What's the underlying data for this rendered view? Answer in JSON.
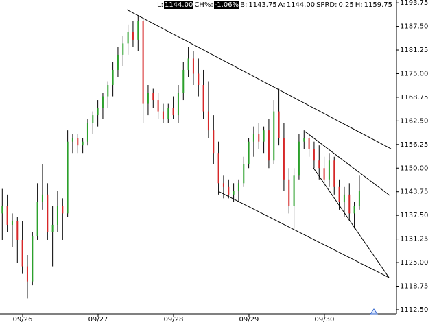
{
  "chart_data": {
    "type": "ohlc",
    "quote": [
      {
        "label": "L:",
        "value": "1144.00",
        "highlight": true
      },
      {
        "label": "CH%:",
        "value": "-1.06%",
        "highlight": true
      },
      {
        "label": "B:",
        "value": "1143.75",
        "highlight": false
      },
      {
        "label": "A:",
        "value": "1144.00",
        "highlight": false
      },
      {
        "label": "SPRD:",
        "value": "0.25",
        "highlight": false
      },
      {
        "label": "H:",
        "value": "1159.75",
        "highlight": false
      }
    ],
    "x": [
      -0.27,
      -0.2033,
      -0.1367,
      -0.07,
      -0.0033,
      0.0633,
      0.13,
      0.1967,
      0.2633,
      0.33,
      0.3967,
      0.4633,
      0.53,
      0.5967,
      0.6633,
      0.73,
      0.7967,
      0.8633,
      0.93,
      0.9967,
      1.0633,
      1.13,
      1.1967,
      1.2633,
      1.33,
      1.3967,
      1.4633,
      1.53,
      1.5967,
      1.6633,
      1.73,
      1.7967,
      1.8633,
      1.93,
      1.9967,
      2.0633,
      2.13,
      2.1967,
      2.2633,
      2.33,
      2.3967,
      2.4633,
      2.53,
      2.5967,
      2.6633,
      2.73,
      2.7967,
      2.8633,
      2.93,
      2.9967,
      3.0633,
      3.13,
      3.1967,
      3.2633,
      3.33,
      3.3967,
      3.4633,
      3.53,
      3.5967,
      3.6633,
      3.73,
      3.7967,
      3.8633,
      3.93,
      3.9967,
      4.0633,
      4.13,
      4.1967,
      4.2633,
      4.33,
      4.3967,
      4.4633
    ],
    "open": [
      1138,
      1140,
      1135,
      1136,
      1131,
      1124,
      1120,
      1132,
      1141,
      1143,
      1133,
      1135,
      1140,
      1138,
      1157,
      1158,
      1156,
      1157,
      1162,
      1164,
      1166,
      1169,
      1172,
      1176,
      1180,
      1183,
      1186,
      1184,
      1189,
      1167,
      1170,
      1168,
      1165,
      1163,
      1166,
      1164,
      1170,
      1176,
      1179,
      1175,
      1172,
      1165,
      1160,
      1154,
      1146,
      1145,
      1143,
      1144,
      1146,
      1151,
      1157,
      1159,
      1157,
      1160,
      1152,
      1165,
      1158,
      1147,
      1140,
      1148,
      1157,
      1158,
      1155,
      1152,
      1150,
      1147,
      1152,
      1145,
      1141,
      1143,
      1138,
      1140
    ],
    "high": [
      1144.5,
      1143,
      1138,
      1137,
      1136,
      1127,
      1133,
      1146,
      1151,
      1146,
      1140,
      1144,
      1142,
      1160,
      1159,
      1159,
      1158,
      1163,
      1165,
      1168,
      1170,
      1173,
      1178,
      1182,
      1185,
      1188,
      1189,
      1190.5,
      1189.5,
      1172,
      1171,
      1170,
      1167,
      1167,
      1169,
      1172,
      1178,
      1182,
      1181,
      1179,
      1176,
      1173,
      1164,
      1157,
      1148,
      1147,
      1146,
      1147,
      1153,
      1158,
      1161,
      1162,
      1161,
      1163,
      1168,
      1171,
      1162,
      1150,
      1150,
      1159,
      1160,
      1159,
      1157,
      1156,
      1153,
      1154,
      1153,
      1147,
      1145,
      1146,
      1141,
      1148
    ],
    "low": [
      1131,
      1133,
      1129,
      1125,
      1122,
      1115.5,
      1119,
      1131,
      1139,
      1131,
      1124,
      1133,
      1131,
      1137,
      1154,
      1154,
      1154,
      1156,
      1159,
      1161,
      1163,
      1166,
      1169,
      1174,
      1177,
      1180,
      1182,
      1181,
      1162,
      1164,
      1166,
      1163,
      1162,
      1162,
      1163,
      1162,
      1168,
      1174,
      1172,
      1169,
      1163,
      1158,
      1151,
      1143,
      1142,
      1142,
      1141,
      1141,
      1145,
      1150,
      1153,
      1155,
      1154,
      1150,
      1151,
      1156,
      1144,
      1138,
      1134,
      1147,
      1155,
      1153,
      1150,
      1147,
      1145,
      1145,
      1143,
      1139,
      1137,
      1136,
      1134,
      1139
    ],
    "close": [
      1140,
      1135,
      1136,
      1131,
      1124,
      1120,
      1132,
      1141,
      1143,
      1133,
      1135,
      1140,
      1138,
      1157,
      1158,
      1156,
      1157,
      1162,
      1164,
      1166,
      1169,
      1172,
      1176,
      1180,
      1183,
      1186,
      1184,
      1189,
      1167,
      1170,
      1168,
      1165,
      1163,
      1166,
      1164,
      1170,
      1176,
      1179,
      1175,
      1172,
      1165,
      1160,
      1154,
      1146,
      1145,
      1143,
      1144,
      1146,
      1151,
      1157,
      1159,
      1157,
      1160,
      1152,
      1165,
      1158,
      1147,
      1140,
      1148,
      1157,
      1158,
      1155,
      1152,
      1150,
      1147,
      1152,
      1145,
      1141,
      1143,
      1138,
      1140,
      1144
    ],
    "up_color": "#2ca02c",
    "down_color": "#d62728",
    "bar_color": "#000000",
    "trendlines": [
      {
        "x": [
          1.382,
          4.882
        ],
        "y": [
          1191.94,
          1155.12
        ]
      },
      {
        "x": [
          3.745,
          4.864
        ],
        "y": [
          1159.65,
          1142.79
        ]
      },
      {
        "x": [
          2.609,
          4.855
        ],
        "y": [
          1143.7,
          1121.03
        ]
      },
      {
        "x": [
          3.855,
          4.855
        ],
        "y": [
          1150.04,
          1121.03
        ]
      }
    ],
    "xlim": [
      -0.3,
      4.955
    ],
    "xticks": [
      {
        "value": 0,
        "label": "09/26"
      },
      {
        "value": 1,
        "label": "09/27"
      },
      {
        "value": 2,
        "label": "09/28"
      },
      {
        "value": 3,
        "label": "09/29"
      },
      {
        "value": 4,
        "label": "09/30"
      }
    ],
    "ylim": [
      1111.4,
      1194.5
    ],
    "yticks": [
      1193.75,
      {
        "value": 1187.5,
        "label": "1187.50"
      },
      1181.25,
      {
        "value": 1175,
        "label": "1175.00"
      },
      1168.75,
      {
        "value": 1162.5,
        "label": "1162.50"
      },
      1156.25,
      {
        "value": 1150,
        "label": "1150.00"
      },
      1143.75,
      {
        "value": 1137.5,
        "label": "1137.50"
      },
      1131.25,
      {
        "value": 1125,
        "label": "1125.00"
      },
      1118.75,
      {
        "value": 1112.5,
        "label": "1112.50"
      }
    ]
  }
}
